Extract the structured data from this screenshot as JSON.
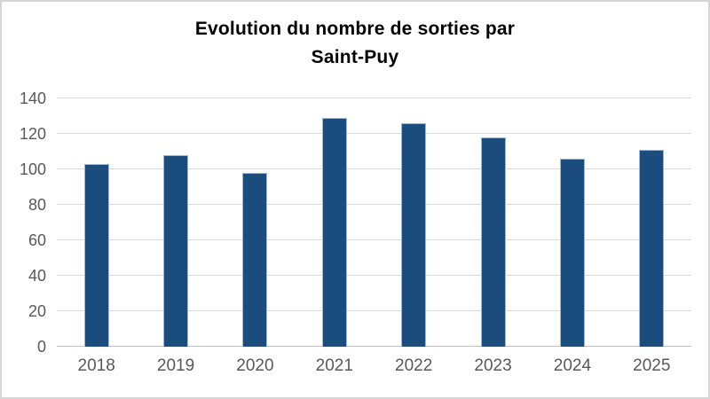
{
  "chart_data": {
    "type": "bar",
    "title": "Evolution du nombre de sorties par Saint-Puy",
    "title_lines": [
      "Evolution du nombre de sorties par",
      "Saint-Puy"
    ],
    "categories": [
      "2018",
      "2019",
      "2020",
      "2021",
      "2022",
      "2023",
      "2024",
      "2025"
    ],
    "values": [
      103,
      108,
      98,
      129,
      126,
      118,
      106,
      111
    ],
    "xlabel": "",
    "ylabel": "",
    "ylim": [
      0,
      140
    ],
    "yticks": [
      0,
      20,
      40,
      60,
      80,
      100,
      120,
      140
    ],
    "grid": true,
    "legend": "none",
    "data_labels": "none",
    "colors": {
      "bar_fill": "#1B4C7E",
      "bar_border": "#9FB8D8",
      "gridline": "#D9D9D9",
      "axis_line": "#C2C2C2",
      "tick_label": "#595959",
      "title": "#000000",
      "chart_frame": "#D6D6D6",
      "background": "#FFFFFF"
    }
  }
}
